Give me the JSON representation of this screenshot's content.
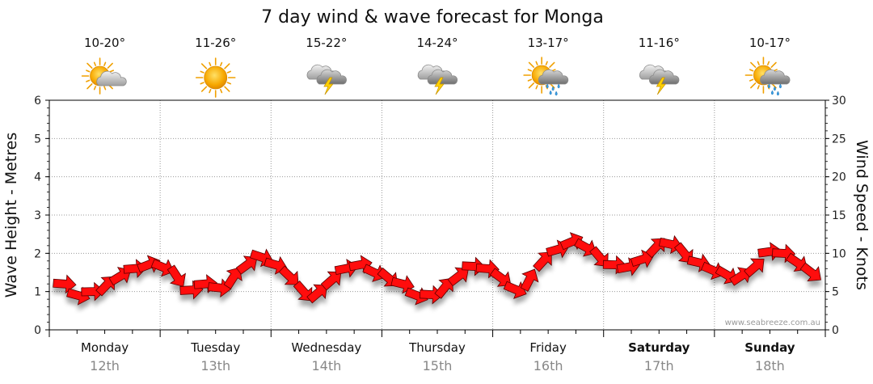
{
  "chart_data": {
    "type": "line",
    "title": "7 day wind & wave forecast for Monga",
    "ylabel_left": "Wave Height - Metres",
    "ylabel_right": "Wind Speed - Knots",
    "ylim_left": [
      0,
      6
    ],
    "ylim_right": [
      0,
      30
    ],
    "yticks_left": [
      "0",
      "1",
      "2",
      "3",
      "4",
      "5",
      "6"
    ],
    "yticks_right": [
      "0",
      "5",
      "10",
      "15",
      "20",
      "25",
      "30"
    ],
    "grid": true,
    "credit": "www.seabreeze.com.au",
    "days": [
      {
        "name": "Monday",
        "date": "12th",
        "temp": "10-20°",
        "icon": "partly-cloudy-icon",
        "bold": false
      },
      {
        "name": "Tuesday",
        "date": "13th",
        "temp": "11-26°",
        "icon": "sunny-icon",
        "bold": false
      },
      {
        "name": "Wednesday",
        "date": "14th",
        "temp": "15-22°",
        "icon": "storm-icon",
        "bold": false
      },
      {
        "name": "Thursday",
        "date": "15th",
        "temp": "14-24°",
        "icon": "storm-icon",
        "bold": false
      },
      {
        "name": "Friday",
        "date": "16th",
        "temp": "13-17°",
        "icon": "sun-shower-icon",
        "bold": false
      },
      {
        "name": "Saturday",
        "date": "17th",
        "temp": "11-16°",
        "icon": "storm-icon",
        "bold": true
      },
      {
        "name": "Sunday",
        "date": "18th",
        "temp": "10-17°",
        "icon": "sun-shower-icon",
        "bold": true
      }
    ],
    "series": [
      {
        "unit": "knots",
        "color": "#ff0000",
        "marker": "wind-arrow",
        "values": [
          6,
          4.5,
          5,
          5.8,
          7,
          8,
          8.5,
          8.2,
          7,
          5.2,
          6,
          5.5,
          6.8,
          8.5,
          9.5,
          8.5,
          7,
          5,
          4.8,
          6.5,
          8,
          8.5,
          7.5,
          6.8,
          6,
          4.5,
          4.6,
          5.5,
          7,
          8.3,
          8,
          6.8,
          5.3,
          6.5,
          9,
          10.5,
          11.5,
          10.8,
          9.5,
          8.5,
          8.2,
          9.2,
          10.8,
          11.2,
          10,
          8.8,
          7.8,
          7.2,
          7,
          8.2,
          10.2,
          10,
          8.8,
          7.5
        ]
      }
    ]
  }
}
